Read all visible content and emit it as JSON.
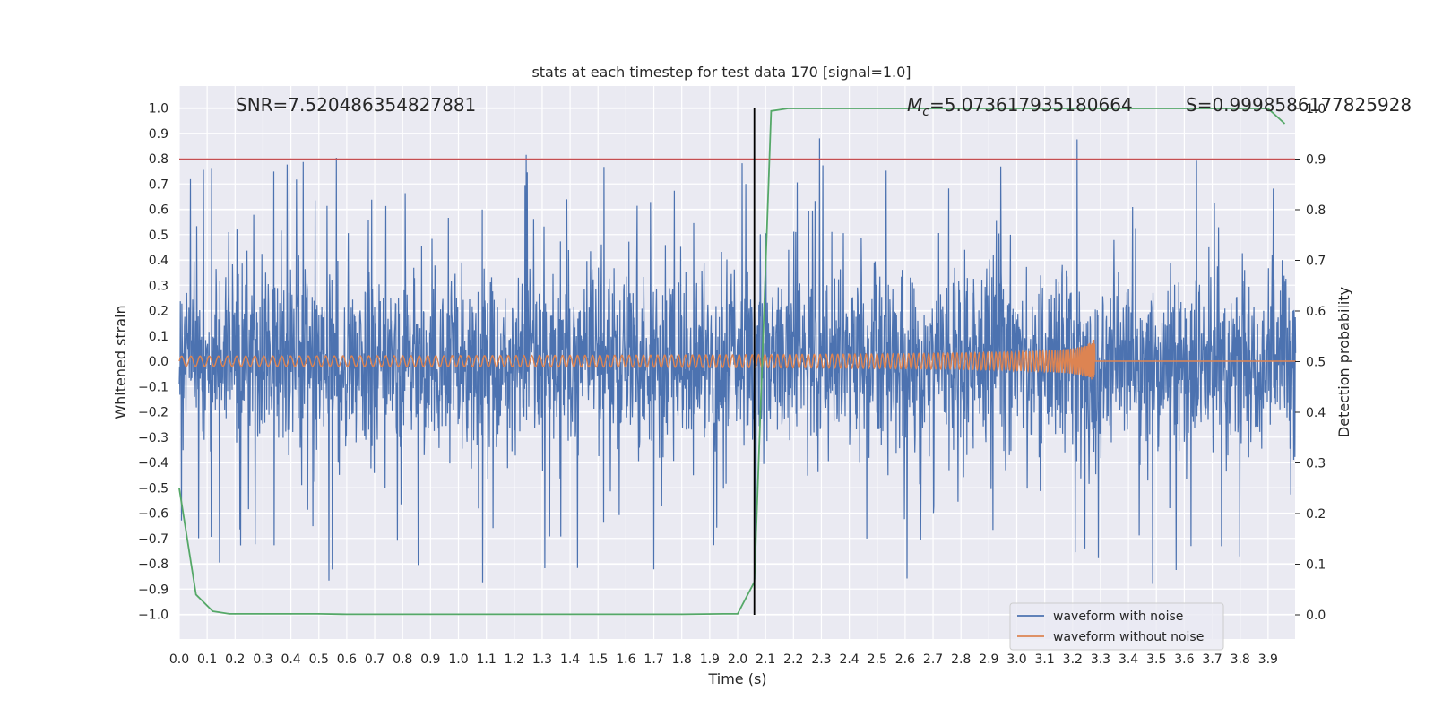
{
  "chart_data": {
    "type": "line",
    "title": "stats at each timestep for test data 170 [signal=1.0]",
    "xlabel": "Time (s)",
    "ylabel": "Whitened strain",
    "y2label": "Detection probability",
    "xlim": [
      0.0,
      4.0
    ],
    "ylim": [
      -1.1,
      1.1
    ],
    "y2lim": [
      -0.05,
      1.05
    ],
    "grid": true,
    "xticks": [
      "0.0",
      "0.1",
      "0.2",
      "0.3",
      "0.4",
      "0.5",
      "0.6",
      "0.7",
      "0.8",
      "0.9",
      "1.0",
      "1.1",
      "1.2",
      "1.3",
      "1.4",
      "1.5",
      "1.6",
      "1.7",
      "1.8",
      "1.9",
      "2.0",
      "2.1",
      "2.2",
      "2.3",
      "2.4",
      "2.5",
      "2.6",
      "2.7",
      "2.8",
      "2.9",
      "3.0",
      "3.1",
      "3.2",
      "3.3",
      "3.4",
      "3.5",
      "3.6",
      "3.7",
      "3.8",
      "3.9"
    ],
    "yticks": [
      "1.0",
      "0.9",
      "0.8",
      "0.7",
      "0.6",
      "0.5",
      "0.4",
      "0.3",
      "0.2",
      "0.1",
      "0.0",
      "−0.1",
      "−0.2",
      "−0.3",
      "−0.4",
      "−0.5",
      "−0.6",
      "−0.7",
      "−0.8",
      "−0.9",
      "−1.0"
    ],
    "y2ticks": [
      "1.0",
      "0.9",
      "0.8",
      "0.7",
      "0.6",
      "0.5",
      "0.4",
      "0.3",
      "0.2",
      "0.1",
      "0.0"
    ],
    "annotations": {
      "snr": "SNR=7.520486354827881",
      "mc_symbol": "M",
      "mc_sub": "c",
      "mc_value": "=5.073617935180664",
      "s": "S=0.9998586177825928"
    },
    "threshold_y2": 0.9,
    "event_time": 2.06,
    "event_y2_range": [
      0.0,
      1.0
    ],
    "colors": {
      "noisy": "#4c72b0",
      "clean": "#dd8452",
      "prob": "#55a868",
      "threshold": "#c44e52",
      "event": "#000000"
    },
    "series": [
      {
        "name": "waveform with noise",
        "description": "whitened strain, noise-dominated, amplitude ~±0.5 with spikes to ~±0.98",
        "peak_values": [
          0.98,
          -0.97
        ]
      },
      {
        "name": "waveform without noise",
        "description": "chirp signal, amplitude 0.02 growing to 0.17 at merger ~3.28 s, then zero",
        "merger_time": 3.28,
        "start_amplitude": 0.02,
        "peak_amplitude": 0.17
      },
      {
        "name": "detection probability",
        "axis": "right",
        "x": [
          0.0,
          0.06,
          0.12,
          0.18,
          0.3,
          0.5,
          0.6,
          0.8,
          1.0,
          1.5,
          1.8,
          1.95,
          2.0,
          2.06,
          2.12,
          2.18,
          2.4,
          3.0,
          3.9,
          3.96
        ],
        "values": [
          0.25,
          0.04,
          0.007,
          0.002,
          0.002,
          0.002,
          0.001,
          0.001,
          0.001,
          0.001,
          0.001,
          0.002,
          0.002,
          0.065,
          0.995,
          1.0,
          1.0,
          1.0,
          1.0,
          0.97
        ]
      }
    ],
    "legend": {
      "placement": "lower-right",
      "entries": [
        "waveform with noise",
        "waveform without noise"
      ]
    }
  }
}
